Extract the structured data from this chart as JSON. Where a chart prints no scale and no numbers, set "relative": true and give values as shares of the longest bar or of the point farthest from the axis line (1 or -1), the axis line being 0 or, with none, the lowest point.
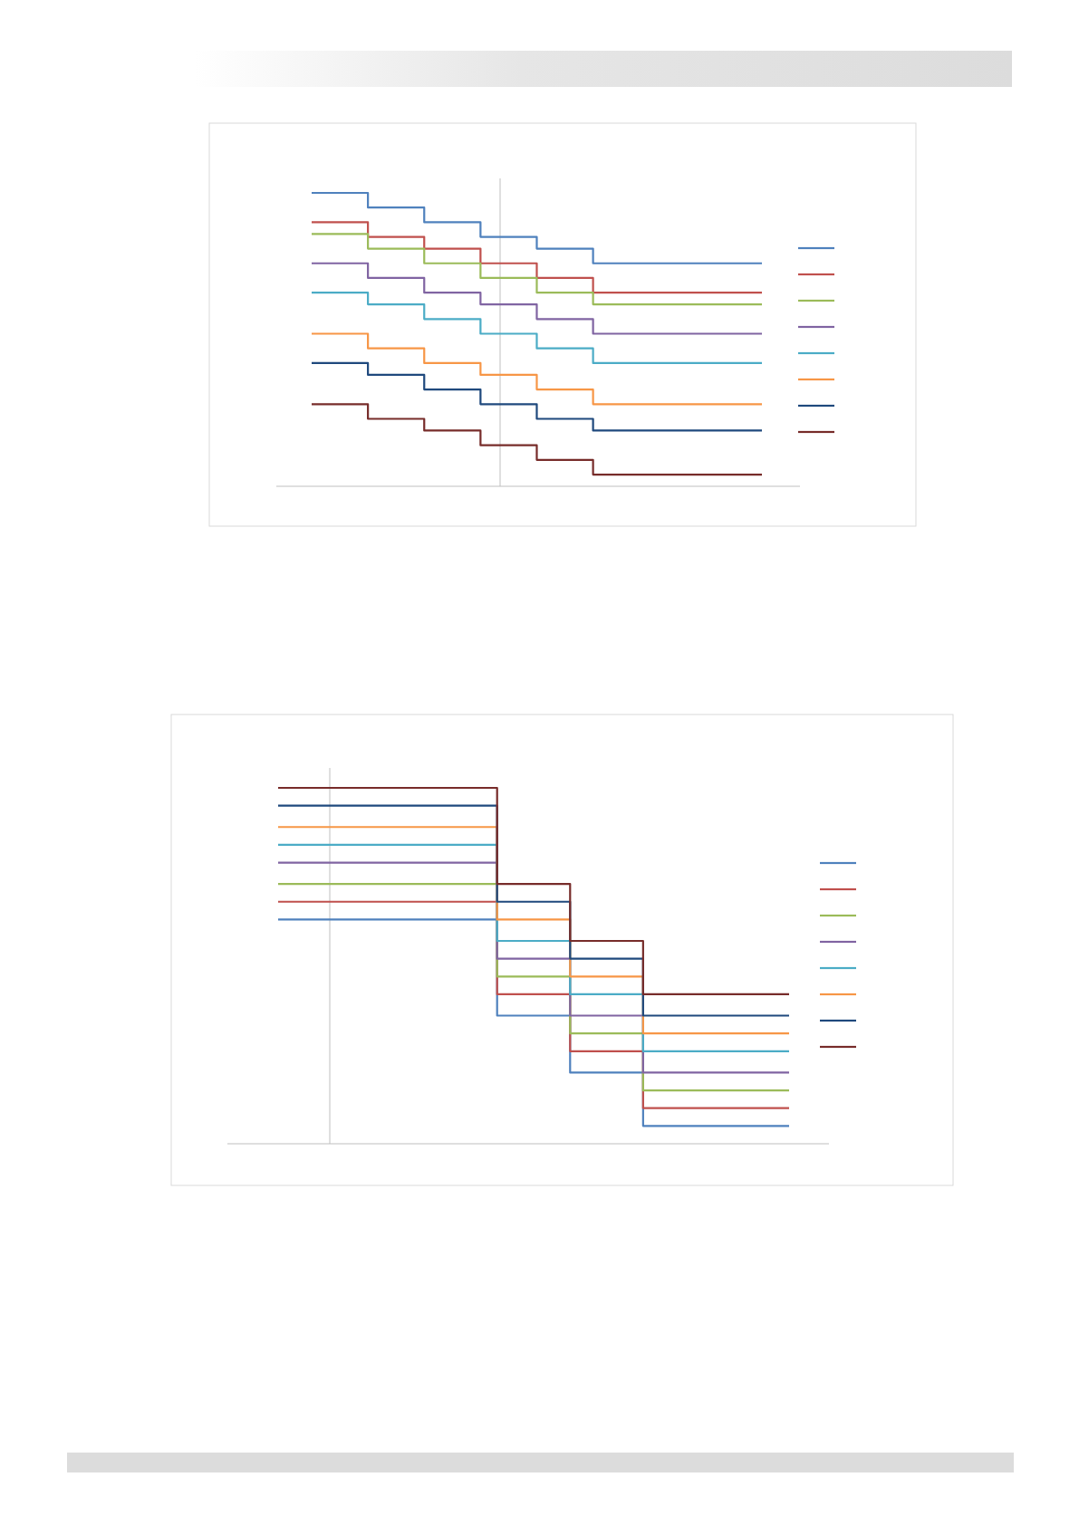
{
  "chart_data": [
    {
      "type": "step",
      "relative": true,
      "categories": [
        null,
        null,
        null,
        null,
        null,
        null,
        null,
        null,
        null
      ],
      "series": [
        {
          "color": "#4f81bd",
          "values": [
            1,
            0.95,
            0.9,
            0.85,
            0.81,
            0.76,
            0.76,
            0.76,
            0.76
          ]
        },
        {
          "color": "#c0504d",
          "values": [
            0.9,
            0.85,
            0.81,
            0.76,
            0.71,
            0.66,
            0.66,
            0.66,
            0.66
          ]
        },
        {
          "color": "#9bbb59",
          "values": [
            0.86,
            0.81,
            0.76,
            0.71,
            0.66,
            0.62,
            0.62,
            0.62,
            0.62
          ]
        },
        {
          "color": "#8064a2",
          "values": [
            0.76,
            0.71,
            0.66,
            0.62,
            0.57,
            0.52,
            0.52,
            0.52,
            0.52
          ]
        },
        {
          "color": "#4bacc6",
          "values": [
            0.66,
            0.62,
            0.57,
            0.52,
            0.47,
            0.42,
            0.42,
            0.42,
            0.42
          ]
        },
        {
          "color": "#f79646",
          "values": [
            0.52,
            0.47,
            0.42,
            0.38,
            0.33,
            0.28,
            0.28,
            0.28,
            0.28
          ]
        },
        {
          "color": "#1f497d",
          "values": [
            0.42,
            0.38,
            0.33,
            0.28,
            0.23,
            0.19,
            0.19,
            0.19,
            0.19
          ]
        },
        {
          "color": "#772c2a",
          "values": [
            0.28,
            0.23,
            0.19,
            0.14,
            0.09,
            0.04,
            0.04,
            0.04,
            0.04
          ]
        }
      ]
    },
    {
      "type": "step",
      "relative": true,
      "categories": [
        null,
        null,
        null,
        null,
        null,
        null,
        null,
        null
      ],
      "series": [
        {
          "color": "#4f81bd",
          "values": [
            0.63,
            0.63,
            0.63,
            0.36,
            0.2,
            0.05,
            0.05,
            0.05
          ]
        },
        {
          "color": "#c0504d",
          "values": [
            0.68,
            0.68,
            0.68,
            0.42,
            0.26,
            0.1,
            0.1,
            0.1
          ]
        },
        {
          "color": "#9bbb59",
          "values": [
            0.73,
            0.73,
            0.73,
            0.47,
            0.31,
            0.15,
            0.15,
            0.15
          ]
        },
        {
          "color": "#8064a2",
          "values": [
            0.79,
            0.79,
            0.79,
            0.52,
            0.36,
            0.2,
            0.2,
            0.2
          ]
        },
        {
          "color": "#4bacc6",
          "values": [
            0.84,
            0.84,
            0.84,
            0.57,
            0.42,
            0.26,
            0.26,
            0.26
          ]
        },
        {
          "color": "#f79646",
          "values": [
            0.89,
            0.89,
            0.89,
            0.63,
            0.47,
            0.31,
            0.31,
            0.31
          ]
        },
        {
          "color": "#1f497d",
          "values": [
            0.95,
            0.95,
            0.95,
            0.68,
            0.52,
            0.36,
            0.36,
            0.36
          ]
        },
        {
          "color": "#772c2a",
          "values": [
            1,
            1,
            1,
            0.73,
            0.57,
            0.42,
            0.42,
            0.42
          ]
        }
      ]
    }
  ]
}
